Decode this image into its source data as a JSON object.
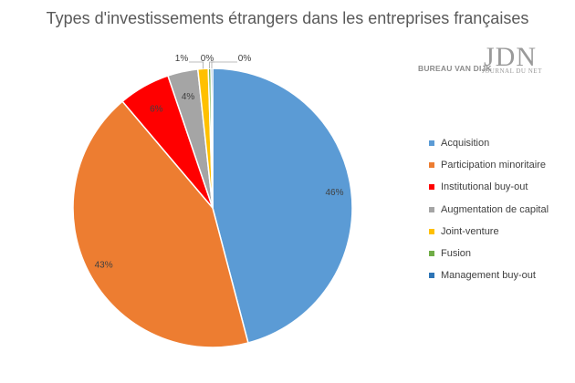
{
  "branding": {
    "source": "BUREAU VAN DIJK",
    "publisher": "JDN",
    "publisher_sub": "JOURNAL DU NET"
  },
  "chart_data": {
    "type": "pie",
    "title": "Types d'investissements étrangers dans les entreprises françaises",
    "legend_position": "right",
    "slices": [
      {
        "name": "Acquisition",
        "value": 46,
        "label": "46%",
        "color": "#5b9bd5"
      },
      {
        "name": "Participation minoritaire",
        "value": 43,
        "label": "43%",
        "color": "#ed7d31"
      },
      {
        "name": "Institutional buy-out",
        "value": 6,
        "label": "6%",
        "color": "#ff0000"
      },
      {
        "name": "Augmentation de capital",
        "value": 3.5,
        "label": "4%",
        "color": "#a5a5a5"
      },
      {
        "name": "Joint-venture",
        "value": 1.2,
        "label": "1%",
        "color": "#ffc000"
      },
      {
        "name": "Fusion",
        "value": 0.3,
        "label": "0%",
        "color": "#70ad47"
      },
      {
        "name": "Management buy-out",
        "value": 0.2,
        "label": "0%",
        "color": "#2e75b6"
      }
    ]
  }
}
